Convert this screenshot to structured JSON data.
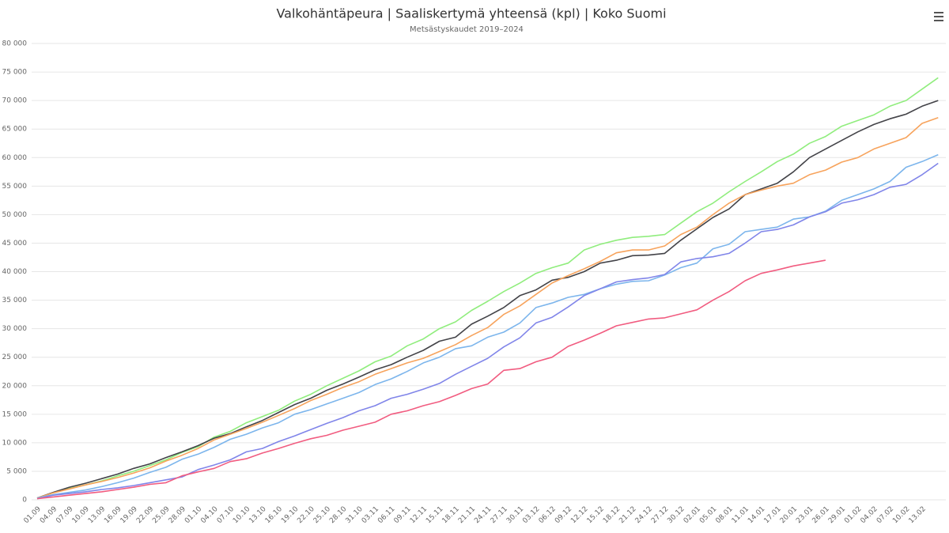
{
  "chart_data": {
    "type": "line",
    "title": "Valkohäntäpeura | Saaliskertymä yhteensä (kpl) | Koko Suomi",
    "subtitle": "Metsästyskaudet 2019–2024",
    "categories": [
      "01.09",
      "04.09",
      "07.09",
      "10.09",
      "13.09",
      "16.09",
      "19.09",
      "22.09",
      "25.09",
      "28.09",
      "01.10",
      "04.10",
      "07.10",
      "10.10",
      "13.10",
      "16.10",
      "19.10",
      "22.10",
      "25.10",
      "28.10",
      "31.10",
      "03.11",
      "06.11",
      "09.11",
      "12.11",
      "15.11",
      "18.11",
      "21.11",
      "24.11",
      "27.11",
      "30.11",
      "03.12",
      "06.12",
      "09.12",
      "12.12",
      "15.12",
      "18.12",
      "21.12",
      "24.12",
      "27.12",
      "30.12",
      "02.01",
      "05.01",
      "08.01",
      "11.01",
      "14.01",
      "17.01",
      "20.01",
      "23.01",
      "26.01",
      "29.01",
      "01.02",
      "04.02",
      "07.02",
      "10.02",
      "13.02",
      null
    ],
    "ylim": [
      0,
      80000
    ],
    "yticks": [
      0,
      {
        "value": 5000,
        "label": "5 000"
      },
      {
        "value": 10000,
        "label": "10 000"
      },
      {
        "value": 15000,
        "label": "15 000"
      },
      {
        "value": 20000,
        "label": "20 000"
      },
      {
        "value": 25000,
        "label": "25 000"
      },
      {
        "value": 30000,
        "label": "30 000"
      },
      {
        "value": 35000,
        "label": "35 000"
      },
      {
        "value": 40000,
        "label": "40 000"
      },
      {
        "value": 45000,
        "label": "45 000"
      },
      {
        "value": 50000,
        "label": "50 000"
      },
      {
        "value": 55000,
        "label": "55 000"
      },
      {
        "value": 60000,
        "label": "60 000"
      },
      {
        "value": 65000,
        "label": "65 000"
      },
      {
        "value": 70000,
        "label": "70 000"
      },
      {
        "value": 75000,
        "label": "75 000"
      },
      {
        "value": 80000,
        "label": "80 000"
      }
    ],
    "grid": true,
    "series": [
      {
        "color": "#90ed7d",
        "values": [
          300,
          1200,
          2000,
          2600,
          3300,
          4200,
          5000,
          6000,
          7000,
          8300,
          9300,
          11000,
          12000,
          13500,
          14600,
          15700,
          17300,
          18500,
          20000,
          21300,
          22600,
          24200,
          25200,
          27000,
          28200,
          30000,
          31200,
          33200,
          34800,
          36500,
          38000,
          39700,
          40700,
          41500,
          43800,
          44800,
          45500,
          46000,
          46200,
          46500,
          48500,
          50500,
          52000,
          54000,
          55800,
          57500,
          59300,
          60600,
          62500,
          63700,
          65500,
          66500,
          67500,
          69000,
          70000,
          72000,
          74000
        ]
      },
      {
        "color": "#434348",
        "values": [
          300,
          1300,
          2200,
          2900,
          3700,
          4500,
          5500,
          6300,
          7400,
          8400,
          9500,
          10800,
          11600,
          12800,
          13900,
          15300,
          16700,
          17800,
          19200,
          20300,
          21500,
          22800,
          23700,
          25000,
          26200,
          27800,
          28500,
          30800,
          32200,
          33700,
          35800,
          36800,
          38500,
          39000,
          40000,
          41500,
          42000,
          42800,
          42900,
          43200,
          45500,
          47500,
          49500,
          51000,
          53500,
          54500,
          55500,
          57500,
          60000,
          61500,
          63000,
          64500,
          65800,
          66800,
          67600,
          69000,
          70000
        ]
      },
      {
        "color": "#f7a35c",
        "values": [
          300,
          1200,
          1900,
          2600,
          3200,
          3900,
          4700,
          5600,
          6800,
          7800,
          9000,
          10500,
          11500,
          12500,
          13600,
          14800,
          16000,
          17400,
          18500,
          19700,
          20700,
          22000,
          23000,
          24000,
          24800,
          26000,
          27200,
          28800,
          30200,
          32500,
          34000,
          36000,
          38000,
          39300,
          40500,
          41800,
          43300,
          43800,
          43800,
          44500,
          46500,
          47800,
          50000,
          52000,
          53500,
          54300,
          55000,
          55500,
          57000,
          57800,
          59200,
          60000,
          61500,
          62500,
          63500,
          66000,
          67000
        ]
      },
      {
        "color": "#7cb5ec",
        "values": [
          300,
          900,
          1300,
          1700,
          2300,
          3000,
          3800,
          4800,
          5700,
          7100,
          8000,
          9200,
          10600,
          11500,
          12600,
          13500,
          15000,
          15800,
          16800,
          17800,
          18800,
          20200,
          21200,
          22500,
          24000,
          25000,
          26500,
          27000,
          28500,
          29400,
          31000,
          33700,
          34500,
          35500,
          36000,
          37000,
          37800,
          38300,
          38400,
          39400,
          40700,
          41500,
          44000,
          44800,
          47000,
          47400,
          47800,
          49200,
          49600,
          50600,
          52500,
          53500,
          54500,
          55800,
          58300,
          59300,
          60500
        ]
      },
      {
        "color": "#8085e9",
        "values": [
          200,
          800,
          1100,
          1400,
          1800,
          2100,
          2500,
          3000,
          3500,
          4000,
          5300,
          6100,
          7000,
          8400,
          9000,
          10200,
          11200,
          12300,
          13400,
          14400,
          15600,
          16500,
          17800,
          18500,
          19400,
          20400,
          22000,
          23400,
          24800,
          26800,
          28400,
          31000,
          32000,
          33800,
          35800,
          37000,
          38200,
          38600,
          38900,
          39500,
          41700,
          42300,
          42600,
          43200,
          45000,
          47000,
          47400,
          48200,
          49600,
          50500,
          52000,
          52600,
          53500,
          54800,
          55300,
          57000,
          59000
        ]
      },
      {
        "color": "#f15c80",
        "values": [
          200,
          500,
          800,
          1100,
          1400,
          1800,
          2200,
          2700,
          3000,
          4200,
          4900,
          5500,
          6700,
          7200,
          8200,
          9000,
          9900,
          10700,
          11300,
          12200,
          12900,
          13600,
          15000,
          15600,
          16500,
          17200,
          18300,
          19500,
          20300,
          22700,
          23000,
          24200,
          25000,
          26900,
          28000,
          29200,
          30500,
          31100,
          31700,
          31900,
          32600,
          33300,
          35000,
          36500,
          38400,
          39700,
          40300,
          41000,
          41500,
          42000,
          null,
          null,
          null,
          null,
          null,
          null,
          null
        ]
      }
    ]
  }
}
